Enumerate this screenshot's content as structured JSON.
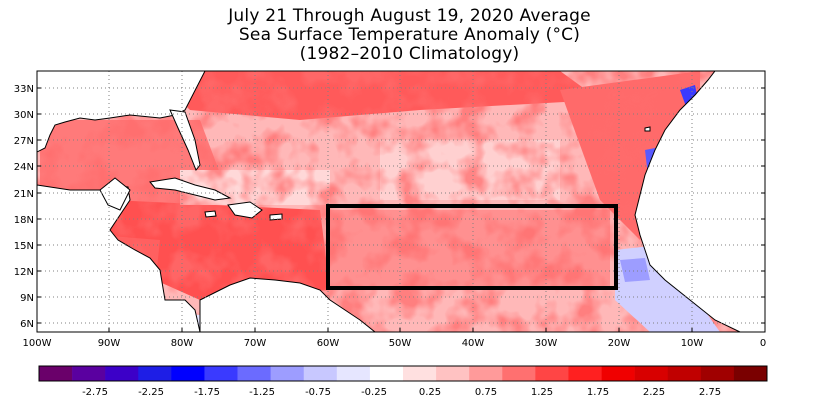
{
  "title": {
    "line1": "July 21 Through August 19, 2020 Average",
    "line2": "Sea Surface Temperature Anomaly (°C)",
    "line3": "(1982–2010 Climatology)"
  },
  "map": {
    "lat_labels": [
      "33N",
      "30N",
      "27N",
      "24N",
      "21N",
      "18N",
      "15N",
      "12N",
      "9N",
      "6N"
    ],
    "lon_labels": [
      "100W",
      "90W",
      "80W",
      "70W",
      "60W",
      "50W",
      "40W",
      "30W",
      "20W",
      "10W",
      "0"
    ],
    "highlight_box": {
      "lon_west": -60,
      "lon_east": -20,
      "lat_south": 10,
      "lat_north": 20
    },
    "land_color": "#ffffff",
    "coast_color": "#000000"
  },
  "colorbar": {
    "tick_labels": [
      "-2.75",
      "-2.25",
      "-1.75",
      "-1.25",
      "-0.75",
      "-0.25",
      "0.25",
      "0.75",
      "1.25",
      "1.75",
      "2.25",
      "2.75"
    ],
    "colors": [
      "#6a006a",
      "#5a00a0",
      "#3c00c8",
      "#1e1ee6",
      "#0000ff",
      "#3a3aff",
      "#6b6bff",
      "#9d9dff",
      "#c8c8ff",
      "#e6e6ff",
      "#ffffff",
      "#ffe0e0",
      "#ffc2c2",
      "#ff9a9a",
      "#ff7070",
      "#ff4545",
      "#ff2020",
      "#f00000",
      "#d80000",
      "#c00000",
      "#a00000",
      "#7a0000"
    ]
  }
}
